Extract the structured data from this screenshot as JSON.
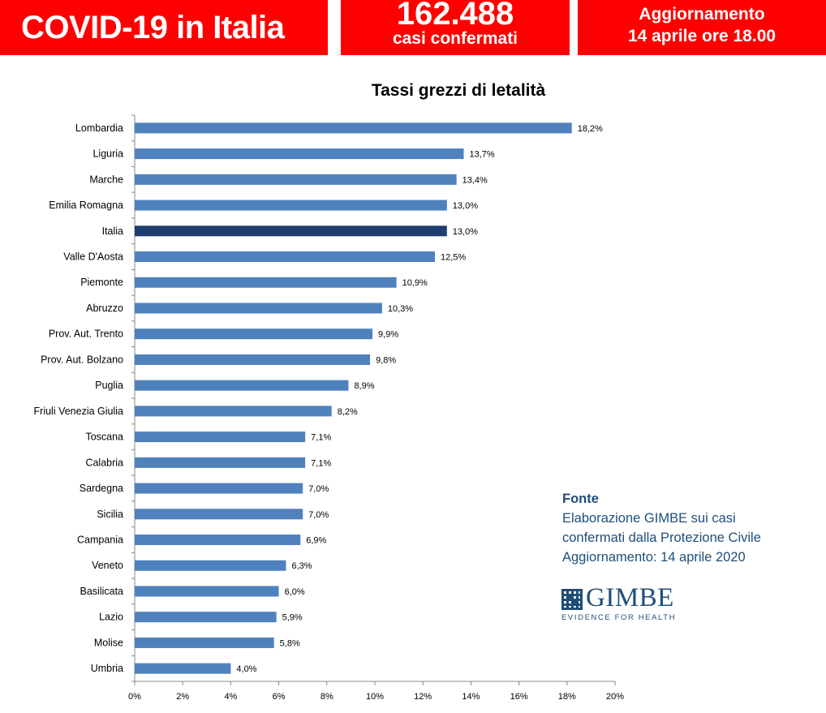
{
  "header": {
    "title": "COVID-19 in Italia",
    "cases_number": "162.488",
    "cases_label": "casi confermati",
    "update_line1": "Aggiornamento",
    "update_line2": "14 aprile ore 18.00"
  },
  "colors": {
    "banner": "#ff0000",
    "bar": "#4f81bd",
    "bar_highlight": "#1f3f6e",
    "source_text": "#1f4e79"
  },
  "chart_data": {
    "type": "bar",
    "orientation": "horizontal",
    "title": "Tassi grezzi di letalità",
    "categories": [
      "Lombardia",
      "Liguria",
      "Marche",
      "Emilia Romagna",
      "Italia",
      "Valle D'Aosta",
      "Piemonte",
      "Abruzzo",
      "Prov. Aut. Trento",
      "Prov. Aut. Bolzano",
      "Puglia",
      "Friuli Venezia Giulia",
      "Toscana",
      "Calabria",
      "Sardegna",
      "Sicilia",
      "Campania",
      "Veneto",
      "Basilicata",
      "Lazio",
      "Molise",
      "Umbria"
    ],
    "values": [
      18.2,
      13.7,
      13.4,
      13.0,
      13.0,
      12.5,
      10.9,
      10.3,
      9.9,
      9.8,
      8.9,
      8.2,
      7.1,
      7.1,
      7.0,
      7.0,
      6.9,
      6.3,
      6.0,
      5.9,
      5.8,
      4.0
    ],
    "value_labels": [
      "18,2%",
      "13,7%",
      "13,4%",
      "13,0%",
      "13,0%",
      "12,5%",
      "10,9%",
      "10,3%",
      "9,9%",
      "9,8%",
      "8,9%",
      "8,2%",
      "7,1%",
      "7,1%",
      "7,0%",
      "7,0%",
      "6,9%",
      "6,3%",
      "6,0%",
      "5,9%",
      "5,8%",
      "4,0%"
    ],
    "highlight": "Italia",
    "xlim": [
      0,
      20
    ],
    "xticks": [
      "0%",
      "2%",
      "4%",
      "6%",
      "8%",
      "10%",
      "12%",
      "14%",
      "16%",
      "18%",
      "20%"
    ],
    "xlabel": "",
    "ylabel": "",
    "grid": false,
    "legend": "none"
  },
  "source": {
    "heading": "Fonte",
    "line1": "Elaborazione GIMBE sui casi",
    "line2": "confermati dalla Protezione Civile",
    "line3": "Aggiornamento: 14 aprile 2020"
  },
  "logo": {
    "name": "GIMBE",
    "tagline": "EVIDENCE FOR HEALTH"
  }
}
